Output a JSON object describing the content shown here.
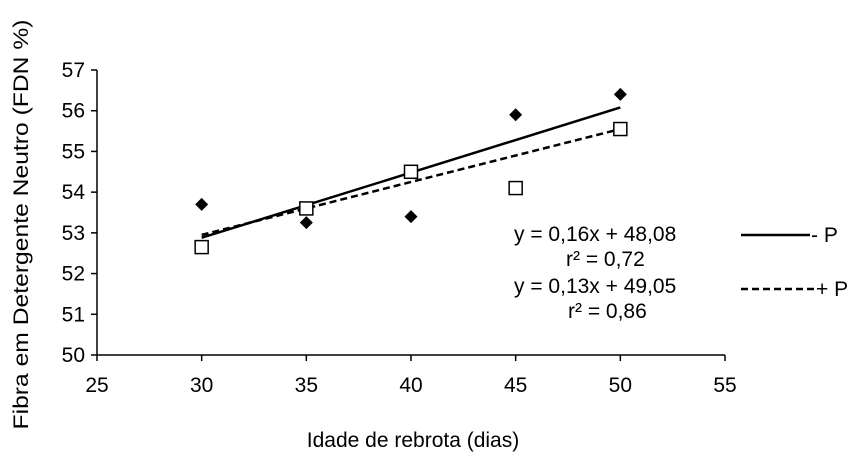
{
  "chart_data": {
    "type": "scatter",
    "xlabel": "Idade de rebrota (dias)",
    "ylabel": "Fibra em Detergente Neutro (FDN %)",
    "xlim": [
      25,
      55
    ],
    "ylim": [
      50,
      57
    ],
    "xticks": [
      25,
      30,
      35,
      40,
      45,
      50,
      55
    ],
    "yticks": [
      50,
      51,
      52,
      53,
      54,
      55,
      56,
      57
    ],
    "grid": false,
    "legend_placement": "right",
    "series": [
      {
        "name": "- P",
        "marker": "diamond-filled",
        "line_style": "solid",
        "color": "#000000",
        "x": [
          30,
          35,
          40,
          45,
          50
        ],
        "y": [
          53.7,
          53.25,
          53.4,
          55.9,
          56.4
        ],
        "trendline": {
          "slope": 0.16,
          "intercept": 48.08,
          "x_range": [
            30,
            50
          ]
        },
        "equation": "y = 0,16x + 48,08",
        "r2": "r² = 0,72"
      },
      {
        "name": "+ P",
        "marker": "square-open",
        "line_style": "dashed",
        "color": "#000000",
        "x": [
          30,
          35,
          40,
          45,
          50
        ],
        "y": [
          52.65,
          53.6,
          54.5,
          54.1,
          55.55
        ],
        "trendline": {
          "slope": 0.13,
          "intercept": 49.05,
          "x_range": [
            30,
            50
          ]
        },
        "equation": "y = 0,13x + 49,05",
        "r2": "r² = 0,86"
      }
    ]
  }
}
